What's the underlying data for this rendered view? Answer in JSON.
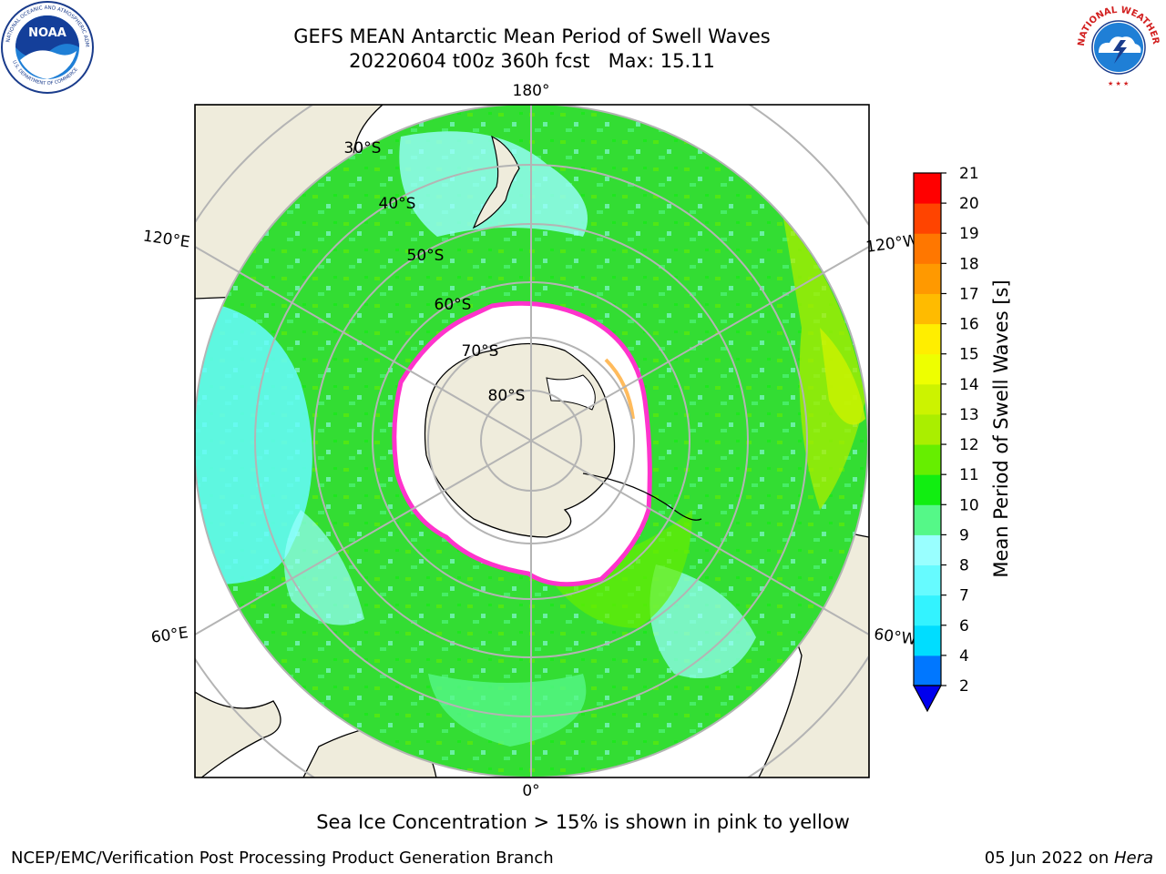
{
  "header": {
    "title_line1": "GEFS MEAN Antarctic Mean Period of Swell Waves",
    "title_line2": "20220604 t00z 360h fcst   Max: 15.11"
  },
  "logos": {
    "left": {
      "icon": "noaa-logo-icon",
      "ring_text": "NATIONAL OCEANIC AND ATMOSPHERIC ADMINISTRATION",
      "bottom_text": "U.S. DEPARTMENT OF COMMERCE",
      "center_text": "NOAA"
    },
    "right": {
      "icon": "nws-logo-icon",
      "ring_text": "NATIONAL WEATHER SERVICE"
    }
  },
  "map": {
    "projection": "south-polar-stereographic",
    "meridian_labels": [
      "180°",
      "120°E",
      "120°W",
      "60°E",
      "60°W",
      "0°"
    ],
    "parallel_labels": [
      "30°S",
      "40°S",
      "50°S",
      "60°S",
      "70°S",
      "80°S"
    ],
    "colors": {
      "land": "#efecdc",
      "sea_ice": "#ffffff",
      "ice_edge": "#ff33cc",
      "ice_edge_secondary": "#ffaa33",
      "grid": "#b4b4b4"
    }
  },
  "colorbar": {
    "label": "Mean Period of Swell Waves [s]",
    "ticks": [
      "2",
      "4",
      "6",
      "7",
      "8",
      "9",
      "10",
      "11",
      "12",
      "13",
      "14",
      "15",
      "16",
      "17",
      "18",
      "19",
      "20",
      "21"
    ],
    "colors": [
      "#0077ff",
      "#00ddff",
      "#33f3ff",
      "#66fbff",
      "#99ffff",
      "#55f888",
      "#11ee11",
      "#66ee00",
      "#aaee00",
      "#ccf300",
      "#eeff00",
      "#ffee00",
      "#ffbb00",
      "#ff9900",
      "#ff7700",
      "#ff4400",
      "#ff0000"
    ],
    "under_color": "#0000ee",
    "extend": "min"
  },
  "caption": "Sea Ice Concentration > 15% is shown in pink to yellow",
  "footer": {
    "left": "NCEP/EMC/Verification Post Processing Product Generation Branch",
    "right_date": "05 Jun 2022 on ",
    "right_host": "Hera"
  }
}
